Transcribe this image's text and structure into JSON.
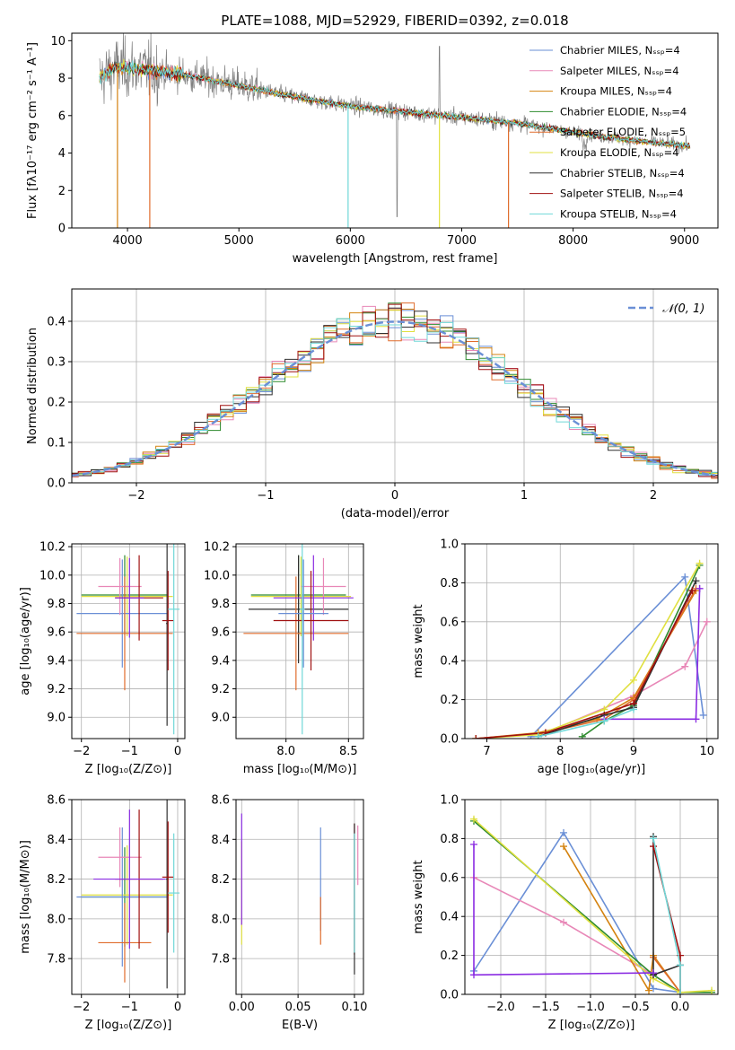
{
  "colors": {
    "spectrum_gray": "#808080",
    "gauss": "#6a8fd6",
    "grid": "#b0b0b0"
  },
  "chart_data": [
    {
      "id": "spectrum",
      "type": "line",
      "title": "PLATE=1088, MJD=52929, FIBERID=0392, z=0.018",
      "xlabel": "wavelength [Angstrom, rest frame]",
      "ylabel": "Flux [fλ10⁻¹⁷ erg cm⁻² s⁻¹ A⁻¹]",
      "xlim": [
        3500,
        9300
      ],
      "ylim": [
        0,
        10.4
      ],
      "xticks": [
        4000,
        5000,
        6000,
        7000,
        8000,
        9000
      ],
      "yticks": [
        0,
        2,
        4,
        6,
        8,
        10
      ],
      "grid": false,
      "legend_position": "top-right",
      "observed_envelope": [
        [
          3750,
          8.0
        ],
        [
          3900,
          8.6
        ],
        [
          4100,
          8.5
        ],
        [
          4500,
          8.2
        ],
        [
          5000,
          7.6
        ],
        [
          5500,
          7.0
        ],
        [
          6000,
          6.5
        ],
        [
          6500,
          6.2
        ],
        [
          7000,
          5.9
        ],
        [
          7500,
          5.6
        ],
        [
          8000,
          5.1
        ],
        [
          8500,
          4.7
        ],
        [
          9000,
          4.4
        ]
      ],
      "legend": [
        {
          "name": "Chabrier MILES, Nₛₛₚ=4",
          "color": "#6a8fd6"
        },
        {
          "name": "Salpeter MILES, Nₛₛₚ=4",
          "color": "#e887b7"
        },
        {
          "name": "Kroupa MILES, Nₛₛₚ=4",
          "color": "#d4820f"
        },
        {
          "name": "Chabrier ELODIE, Nₛₛₚ=4",
          "color": "#2e8b2e"
        },
        {
          "name": "Salpeter ELODIE, Nₛₛₚ=5",
          "color": "#e06c2c"
        },
        {
          "name": "Kroupa ELODIE, Nₛₛₚ=4",
          "color": "#e0e040"
        },
        {
          "name": "Chabrier STELIB, Nₛₛₚ=4",
          "color": "#303030"
        },
        {
          "name": "Salpeter STELIB, Nₛₛₚ=4",
          "color": "#a01010"
        },
        {
          "name": "Kroupa STELIB, Nₛₛₚ=4",
          "color": "#70d8d8"
        }
      ]
    },
    {
      "id": "residuals",
      "type": "line",
      "xlabel": "(data-model)/error",
      "ylabel": "Normed distribution",
      "xlim": [
        -2.5,
        2.5
      ],
      "ylim": [
        0,
        0.48
      ],
      "xticks": [
        -2,
        -1,
        0,
        1,
        2
      ],
      "yticks": [
        0.0,
        0.1,
        0.2,
        0.3,
        0.4
      ],
      "grid": true,
      "legend_position": "top-right",
      "gauss_label": "𝒩(0, 1)",
      "bin_width": 0.1,
      "hist_colors": [
        "#6a8fd6",
        "#e887b7",
        "#d4820f",
        "#2e8b2e",
        "#e06c2c",
        "#e0e040",
        "#303030",
        "#a01010",
        "#70d8d8"
      ]
    },
    {
      "id": "age_vs_Z",
      "type": "scatter",
      "xlabel": "Z [log₁₀(Z/Z⊙)]",
      "ylabel": "age  [log₁₀(age/yr)]",
      "xlim": [
        -2.2,
        0.15
      ],
      "ylim": [
        8.85,
        10.22
      ],
      "xticks": [
        -2,
        -1,
        0
      ],
      "yticks": [
        9.0,
        9.2,
        9.4,
        9.6,
        9.8,
        10.0,
        10.2
      ],
      "grid": true,
      "points": [
        {
          "x": -1.1,
          "xerr": 0.9,
          "y": 9.86,
          "yerr": 0.28,
          "color": "#2e8b2e"
        },
        {
          "x": -1.05,
          "xerr": 0.95,
          "y": 9.85,
          "yerr": 0.28,
          "color": "#e0e040"
        },
        {
          "x": -1.15,
          "xerr": 0.95,
          "y": 9.73,
          "yerr": 0.38,
          "color": "#6a8fd6"
        },
        {
          "x": -1.2,
          "xerr": 0.45,
          "y": 9.92,
          "yerr": 0.2,
          "color": "#e887b7"
        },
        {
          "x": -1.1,
          "xerr": 1.0,
          "y": 9.59,
          "yerr": 0.4,
          "color": "#e06c2c"
        },
        {
          "x": -0.8,
          "xerr": 0.5,
          "y": 9.84,
          "yerr": 0.3,
          "color": "#a01010"
        },
        {
          "x": -1.0,
          "xerr": 0.3,
          "y": 9.84,
          "yerr": 0.28,
          "color": "#8a2be2"
        },
        {
          "x": -0.22,
          "xerr": 0.02,
          "y": 9.66,
          "yerr": 0.72,
          "color": "#303030"
        },
        {
          "x": -0.2,
          "xerr": 0.12,
          "y": 9.68,
          "yerr": 0.35,
          "color": "#a01010"
        },
        {
          "x": -0.08,
          "xerr": 0.12,
          "y": 9.76,
          "yerr": 0.88,
          "color": "#70d8d8"
        }
      ]
    },
    {
      "id": "age_vs_mass",
      "type": "scatter",
      "xlabel": "mass [log₁₀(M/M⊙)]",
      "ylabel": "",
      "xlim": [
        7.6,
        8.62
      ],
      "ylim": [
        8.85,
        10.22
      ],
      "xticks": [
        8.0,
        8.5
      ],
      "yticks": [
        9.0,
        9.2,
        9.4,
        9.6,
        9.8,
        10.0,
        10.2
      ],
      "grid": true,
      "points": [
        {
          "x": 8.1,
          "xerr": 0.38,
          "y": 9.86,
          "yerr": 0.28,
          "color": "#2e8b2e"
        },
        {
          "x": 8.12,
          "xerr": 0.4,
          "y": 9.85,
          "yerr": 0.28,
          "color": "#e0e040"
        },
        {
          "x": 8.1,
          "xerr": 0.4,
          "y": 9.76,
          "yerr": 0.38,
          "color": "#303030"
        },
        {
          "x": 8.3,
          "xerr": 0.18,
          "y": 9.92,
          "yerr": 0.2,
          "color": "#e887b7"
        },
        {
          "x": 8.08,
          "xerr": 0.42,
          "y": 9.59,
          "yerr": 0.4,
          "color": "#e06c2c"
        },
        {
          "x": 8.22,
          "xerr": 0.32,
          "y": 9.84,
          "yerr": 0.3,
          "color": "#8a2be2"
        },
        {
          "x": 8.2,
          "xerr": 0.3,
          "y": 9.68,
          "yerr": 0.35,
          "color": "#a01010"
        },
        {
          "x": 8.14,
          "xerr": 0.2,
          "y": 9.73,
          "yerr": 0.38,
          "color": "#6a8fd6"
        },
        {
          "x": 8.13,
          "xerr": 0.02,
          "y": 9.76,
          "yerr": 0.88,
          "color": "#70d8d8"
        }
      ]
    },
    {
      "id": "massweight_vs_age",
      "type": "line",
      "xlabel": "age  [log₁₀(age/yr)]",
      "ylabel": "mass weight",
      "xlim": [
        6.7,
        10.15
      ],
      "ylim": [
        0,
        1.0
      ],
      "xticks": [
        7,
        8,
        9,
        10
      ],
      "yticks": [
        0.0,
        0.2,
        0.4,
        0.6,
        0.8,
        1.0
      ],
      "grid": true,
      "series": [
        {
          "color": "#6a8fd6",
          "x": [
            7.6,
            9.7,
            9.95
          ],
          "y": [
            0.01,
            0.83,
            0.12
          ]
        },
        {
          "color": "#e887b7",
          "x": [
            6.85,
            7.8,
            9.0,
            9.7,
            10.0
          ],
          "y": [
            0.0,
            0.03,
            0.22,
            0.37,
            0.6
          ]
        },
        {
          "color": "#d4820f",
          "x": [
            6.85,
            7.7,
            8.5,
            9.0,
            9.85
          ],
          "y": [
            0.0,
            0.03,
            0.1,
            0.21,
            0.76
          ]
        },
        {
          "color": "#2e8b2e",
          "x": [
            8.3,
            8.6,
            9.0,
            9.9
          ],
          "y": [
            0.01,
            0.09,
            0.17,
            0.89
          ]
        },
        {
          "color": "#e06c2c",
          "x": [
            6.85,
            7.8,
            8.6,
            9.0,
            9.85
          ],
          "y": [
            0.0,
            0.03,
            0.1,
            0.2,
            0.77
          ]
        },
        {
          "color": "#e0e040",
          "x": [
            6.85,
            7.7,
            8.6,
            9.0,
            9.9
          ],
          "y": [
            0.0,
            0.02,
            0.15,
            0.3,
            0.9
          ]
        },
        {
          "color": "#303030",
          "x": [
            7.7,
            8.6,
            9.0,
            9.85
          ],
          "y": [
            0.01,
            0.12,
            0.16,
            0.81
          ]
        },
        {
          "color": "#a01010",
          "x": [
            6.85,
            7.8,
            9.0,
            9.8
          ],
          "y": [
            0.0,
            0.03,
            0.18,
            0.76
          ]
        },
        {
          "color": "#8a2be2",
          "x": [
            8.6,
            9.85,
            9.9,
            9.9
          ],
          "y": [
            0.1,
            0.1,
            0.77,
            0.77
          ]
        },
        {
          "color": "#70d8d8",
          "x": [
            7.7,
            8.6,
            9.0
          ],
          "y": [
            0.01,
            0.09,
            0.15
          ]
        }
      ]
    },
    {
      "id": "mass_vs_Z",
      "type": "scatter",
      "xlabel": "Z [log₁₀(Z/Z⊙)]",
      "ylabel": "mass [log₁₀(M/M⊙)]",
      "xlim": [
        -2.2,
        0.15
      ],
      "ylim": [
        7.62,
        8.6
      ],
      "xticks": [
        -2,
        -1,
        0
      ],
      "yticks": [
        7.8,
        8.0,
        8.2,
        8.4,
        8.6
      ],
      "grid": true,
      "points": [
        {
          "x": -1.1,
          "xerr": 0.9,
          "y": 8.11,
          "yerr": 0.25,
          "color": "#2e8b2e"
        },
        {
          "x": -1.05,
          "xerr": 0.95,
          "y": 8.12,
          "yerr": 0.25,
          "color": "#e0e040"
        },
        {
          "x": -1.15,
          "xerr": 0.95,
          "y": 8.11,
          "yerr": 0.35,
          "color": "#6a8fd6"
        },
        {
          "x": -1.2,
          "xerr": 0.45,
          "y": 8.31,
          "yerr": 0.15,
          "color": "#e887b7"
        },
        {
          "x": -1.1,
          "xerr": 0.55,
          "y": 7.88,
          "yerr": 0.2,
          "color": "#e06c2c"
        },
        {
          "x": -0.8,
          "xerr": 0.5,
          "y": 8.2,
          "yerr": 0.35,
          "color": "#a01010"
        },
        {
          "x": -1.0,
          "xerr": 0.75,
          "y": 8.2,
          "yerr": 0.35,
          "color": "#8a2be2"
        },
        {
          "x": -0.22,
          "xerr": 0.02,
          "y": 8.2,
          "yerr": 0.55,
          "color": "#303030"
        },
        {
          "x": -0.2,
          "xerr": 0.12,
          "y": 8.21,
          "yerr": 0.28,
          "color": "#a01010"
        },
        {
          "x": -0.08,
          "xerr": 0.12,
          "y": 8.13,
          "yerr": 0.3,
          "color": "#70d8d8"
        }
      ]
    },
    {
      "id": "mass_vs_ebv",
      "type": "scatter",
      "xlabel": "E(B-V)",
      "ylabel": "",
      "xlim": [
        -0.005,
        0.108
      ],
      "ylim": [
        7.62,
        8.6
      ],
      "xticks": [
        0.0,
        0.05,
        0.1
      ],
      "yticks": [
        7.8,
        8.0,
        8.2,
        8.4,
        8.6
      ],
      "grid": true,
      "points": [
        {
          "x": 0.0,
          "xerr": 0.0,
          "y": 8.13,
          "yerr": 0.26,
          "color": "#e0e040"
        },
        {
          "x": 0.0,
          "xerr": 0.0,
          "y": 8.25,
          "yerr": 0.28,
          "color": "#8a2be2"
        },
        {
          "x": 0.07,
          "xerr": 0.0,
          "y": 8.2,
          "yerr": 0.26,
          "color": "#6a8fd6"
        },
        {
          "x": 0.07,
          "xerr": 0.0,
          "y": 7.99,
          "yerr": 0.12,
          "color": "#e06c2c"
        },
        {
          "x": 0.1,
          "xerr": 0.0,
          "y": 8.15,
          "yerr": 0.33,
          "color": "#a01010"
        },
        {
          "x": 0.1,
          "xerr": 0.0,
          "y": 8.1,
          "yerr": 0.38,
          "color": "#303030"
        },
        {
          "x": 0.1,
          "xerr": 0.0,
          "y": 8.13,
          "yerr": 0.3,
          "color": "#70d8d8"
        },
        {
          "x": 0.103,
          "xerr": 0.0,
          "y": 8.32,
          "yerr": 0.15,
          "color": "#e887b7"
        }
      ]
    },
    {
      "id": "massweight_vs_Z",
      "type": "line",
      "xlabel": "Z [log₁₀(Z/Z⊙)]",
      "ylabel": "mass weight",
      "xlim": [
        -2.4,
        0.42
      ],
      "ylim": [
        0,
        1.0
      ],
      "xticks": [
        -2.0,
        -1.5,
        -1.0,
        -0.5,
        0.0
      ],
      "yticks": [
        0.0,
        0.2,
        0.4,
        0.6,
        0.8,
        1.0
      ],
      "grid": true,
      "series": [
        {
          "color": "#6a8fd6",
          "x": [
            -2.3,
            -1.3,
            -0.3,
            0.0
          ],
          "y": [
            0.12,
            0.83,
            0.03,
            0.01
          ]
        },
        {
          "color": "#e887b7",
          "x": [
            -2.3,
            -1.3,
            -0.3,
            0.0
          ],
          "y": [
            0.6,
            0.37,
            0.1,
            0.01
          ]
        },
        {
          "color": "#d4820f",
          "x": [
            -1.3,
            -0.35,
            -0.3,
            0.0
          ],
          "y": [
            0.76,
            0.02,
            0.2,
            0.01
          ]
        },
        {
          "color": "#2e8b2e",
          "x": [
            -2.3,
            -0.3,
            0.0,
            0.35
          ],
          "y": [
            0.89,
            0.1,
            0.01,
            0.01
          ]
        },
        {
          "color": "#e06c2c",
          "x": [
            -0.3,
            0.0
          ],
          "y": [
            0.19,
            0.01
          ]
        },
        {
          "color": "#e0e040",
          "x": [
            -2.3,
            -0.3,
            0.0,
            0.35
          ],
          "y": [
            0.9,
            0.08,
            0.01,
            0.02
          ]
        },
        {
          "color": "#303030",
          "x": [
            -0.3,
            -0.3,
            0.0
          ],
          "y": [
            0.81,
            0.1,
            0.15
          ]
        },
        {
          "color": "#a01010",
          "x": [
            -0.3,
            0.0,
            0.0
          ],
          "y": [
            0.76,
            0.2,
            0.0
          ]
        },
        {
          "color": "#8a2be2",
          "x": [
            -2.3,
            -2.3,
            -0.3
          ],
          "y": [
            0.77,
            0.1,
            0.11
          ]
        },
        {
          "color": "#70d8d8",
          "x": [
            -0.3,
            0.0,
            0.0
          ],
          "y": [
            0.8,
            0.15,
            0.0
          ]
        }
      ]
    }
  ]
}
